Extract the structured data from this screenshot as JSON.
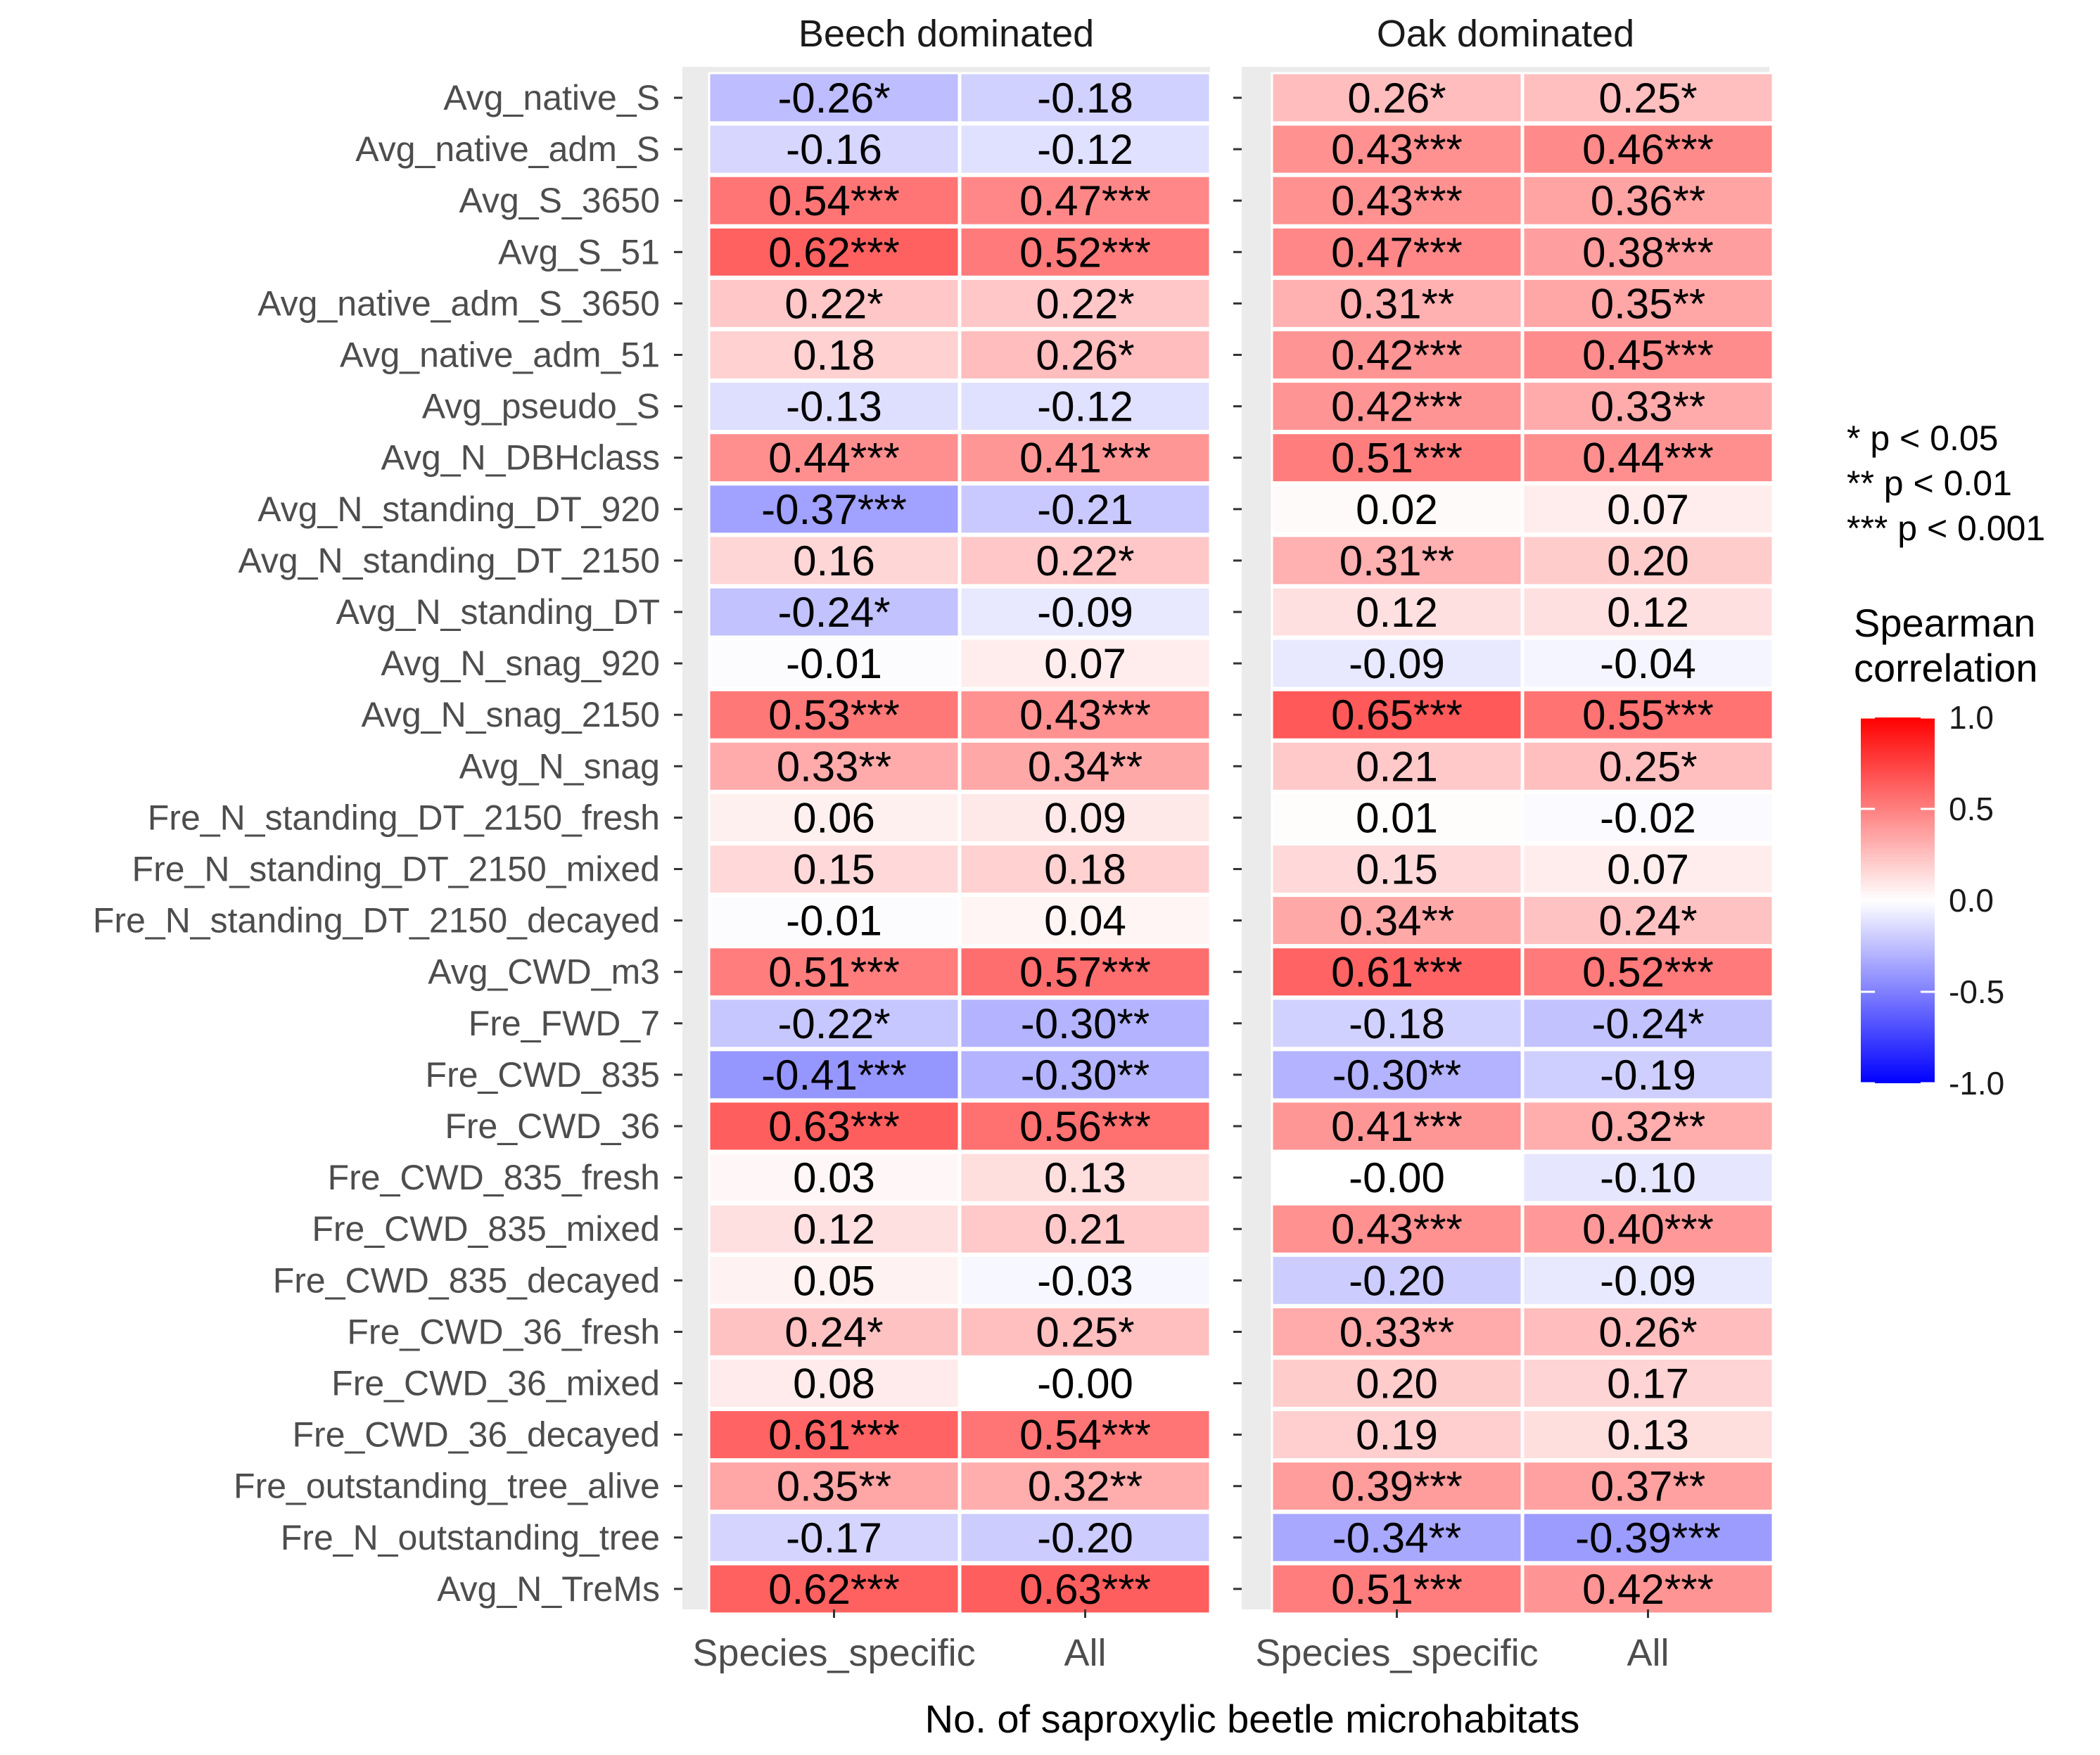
{
  "chart_data": {
    "type": "heatmap",
    "xlabel": "No. of saproxylic beetle microhabitats",
    "facets": [
      "Beech dominated",
      "Oak dominated"
    ],
    "columns": [
      "Species_specific",
      "All"
    ],
    "rows": [
      "Avg_native_S",
      "Avg_native_adm_S",
      "Avg_S_3650",
      "Avg_S_51",
      "Avg_native_adm_S_3650",
      "Avg_native_adm_51",
      "Avg_pseudo_S",
      "Avg_N_DBHclass",
      "Avg_N_standing_DT_920",
      "Avg_N_standing_DT_2150",
      "Avg_N_standing_DT",
      "Avg_N_snag_920",
      "Avg_N_snag_2150",
      "Avg_N_snag",
      "Fre_N_standing_DT_2150_fresh",
      "Fre_N_standing_DT_2150_mixed",
      "Fre_N_standing_DT_2150_decayed",
      "Avg_CWD_m3",
      "Fre_FWD_7",
      "Fre_CWD_835",
      "Fre_CWD_36",
      "Fre_CWD_835_fresh",
      "Fre_CWD_835_mixed",
      "Fre_CWD_835_decayed",
      "Fre_CWD_36_fresh",
      "Fre_CWD_36_mixed",
      "Fre_CWD_36_decayed",
      "Fre_outstanding_tree_alive",
      "Fre_N_outstanding_tree",
      "Avg_N_TreMs"
    ],
    "values": [
      [
        -0.26,
        -0.18,
        0.26,
        0.25
      ],
      [
        -0.16,
        -0.12,
        0.43,
        0.46
      ],
      [
        0.54,
        0.47,
        0.43,
        0.36
      ],
      [
        0.62,
        0.52,
        0.47,
        0.38
      ],
      [
        0.22,
        0.22,
        0.31,
        0.35
      ],
      [
        0.18,
        0.26,
        0.42,
        0.45
      ],
      [
        -0.13,
        -0.12,
        0.42,
        0.33
      ],
      [
        0.44,
        0.41,
        0.51,
        0.44
      ],
      [
        -0.37,
        -0.21,
        0.02,
        0.07
      ],
      [
        0.16,
        0.22,
        0.31,
        0.2
      ],
      [
        -0.24,
        -0.09,
        0.12,
        0.12
      ],
      [
        -0.01,
        0.07,
        -0.09,
        -0.04
      ],
      [
        0.53,
        0.43,
        0.65,
        0.55
      ],
      [
        0.33,
        0.34,
        0.21,
        0.25
      ],
      [
        0.06,
        0.09,
        0.01,
        -0.02
      ],
      [
        0.15,
        0.18,
        0.15,
        0.07
      ],
      [
        -0.01,
        0.04,
        0.34,
        0.24
      ],
      [
        0.51,
        0.57,
        0.61,
        0.52
      ],
      [
        -0.22,
        -0.3,
        -0.18,
        -0.24
      ],
      [
        -0.41,
        -0.3,
        -0.3,
        -0.19
      ],
      [
        0.63,
        0.56,
        0.41,
        0.32
      ],
      [
        0.03,
        0.13,
        -0.0,
        -0.1
      ],
      [
        0.12,
        0.21,
        0.43,
        0.4
      ],
      [
        0.05,
        -0.03,
        -0.2,
        -0.09
      ],
      [
        0.24,
        0.25,
        0.33,
        0.26
      ],
      [
        0.08,
        -0.0,
        0.2,
        0.17
      ],
      [
        0.61,
        0.54,
        0.19,
        0.13
      ],
      [
        0.35,
        0.32,
        0.39,
        0.37
      ],
      [
        -0.17,
        -0.2,
        -0.34,
        -0.39
      ],
      [
        0.62,
        0.63,
        0.51,
        0.42
      ]
    ],
    "labels": [
      [
        "-0.26*",
        "-0.18",
        "0.26*",
        "0.25*"
      ],
      [
        "-0.16",
        "-0.12",
        "0.43***",
        "0.46***"
      ],
      [
        "0.54***",
        "0.47***",
        "0.43***",
        "0.36**"
      ],
      [
        "0.62***",
        "0.52***",
        "0.47***",
        "0.38***"
      ],
      [
        "0.22*",
        "0.22*",
        "0.31**",
        "0.35**"
      ],
      [
        "0.18",
        "0.26*",
        "0.42***",
        "0.45***"
      ],
      [
        "-0.13",
        "-0.12",
        "0.42***",
        "0.33**"
      ],
      [
        "0.44***",
        "0.41***",
        "0.51***",
        "0.44***"
      ],
      [
        "-0.37***",
        "-0.21",
        "0.02",
        "0.07"
      ],
      [
        "0.16",
        "0.22*",
        "0.31**",
        "0.20"
      ],
      [
        "-0.24*",
        "-0.09",
        "0.12",
        "0.12"
      ],
      [
        "-0.01",
        "0.07",
        "-0.09",
        "-0.04"
      ],
      [
        "0.53***",
        "0.43***",
        "0.65***",
        "0.55***"
      ],
      [
        "0.33**",
        "0.34**",
        "0.21",
        "0.25*"
      ],
      [
        "0.06",
        "0.09",
        "0.01",
        "-0.02"
      ],
      [
        "0.15",
        "0.18",
        "0.15",
        "0.07"
      ],
      [
        "-0.01",
        "0.04",
        "0.34**",
        "0.24*"
      ],
      [
        "0.51***",
        "0.57***",
        "0.61***",
        "0.52***"
      ],
      [
        "-0.22*",
        "-0.30**",
        "-0.18",
        "-0.24*"
      ],
      [
        "-0.41***",
        "-0.30**",
        "-0.30**",
        "-0.19"
      ],
      [
        "0.63***",
        "0.56***",
        "0.41***",
        "0.32**"
      ],
      [
        "0.03",
        "0.13",
        "-0.00",
        "-0.10"
      ],
      [
        "0.12",
        "0.21",
        "0.43***",
        "0.40***"
      ],
      [
        "0.05",
        "-0.03",
        "-0.20",
        "-0.09"
      ],
      [
        "0.24*",
        "0.25*",
        "0.33**",
        "0.26*"
      ],
      [
        "0.08",
        "-0.00",
        "0.20",
        "0.17"
      ],
      [
        "0.61***",
        "0.54***",
        "0.19",
        "0.13"
      ],
      [
        "0.35**",
        "0.32**",
        "0.39***",
        "0.37**"
      ],
      [
        "-0.17",
        "-0.20",
        "-0.34**",
        "-0.39***"
      ],
      [
        "0.62***",
        "0.63***",
        "0.51***",
        "0.42***"
      ]
    ],
    "color_scale": {
      "low": "#0000ff",
      "mid": "#ffffff",
      "high": "#ff0000",
      "range": [
        -1.0,
        1.0
      ]
    },
    "legend": {
      "significance": [
        "* p < 0.05",
        "** p < 0.01",
        "*** p < 0.001"
      ],
      "title_lines": [
        "Spearman",
        "correlation"
      ],
      "ticks": [
        "1.0",
        "0.5",
        "0.0",
        "-0.5",
        "-1.0"
      ],
      "tick_values": [
        1.0,
        0.5,
        0.0,
        -0.5,
        -1.0
      ],
      "position": "right"
    },
    "panel_background": "#ebebeb",
    "grid": false
  }
}
